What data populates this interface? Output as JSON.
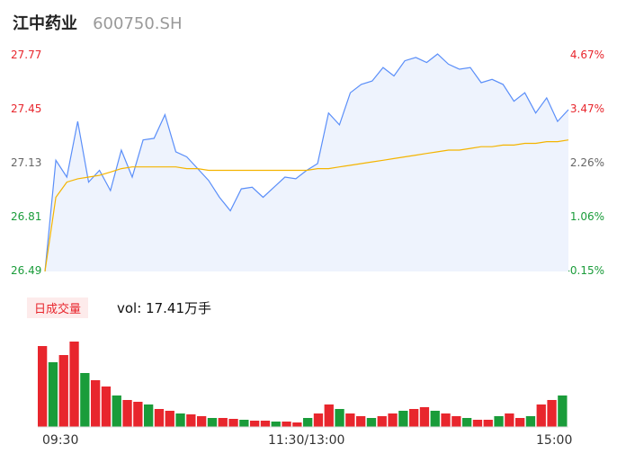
{
  "header": {
    "name": "江中药业",
    "code": "600750.SH"
  },
  "price_axis": {
    "left_labels": [
      "27.77",
      "27.45",
      "27.13",
      "26.81",
      "26.49"
    ],
    "right_labels": [
      "4.67%",
      "3.47%",
      "2.26%",
      "1.06%",
      "-0.15%"
    ]
  },
  "volume_panel": {
    "badge": "日成交量",
    "vol_text": "vol: 17.41万手"
  },
  "time_axis": {
    "labels": [
      "09:30",
      "11:30/13:00",
      "15:00"
    ]
  },
  "colors": {
    "price_line": "#5b8ff9",
    "avg_line": "#f4b400",
    "up": "#e8262d",
    "down": "#1a9c3a",
    "area": "#eef3fd"
  },
  "chart_data": [
    {
      "type": "line",
      "title": "",
      "x": [
        0,
        5,
        10,
        15,
        20,
        25,
        30,
        35,
        40,
        45,
        50,
        55,
        60,
        65,
        70,
        75,
        80,
        85,
        90,
        95,
        100,
        105,
        110,
        115,
        120,
        125,
        130,
        135,
        140,
        145,
        150,
        155,
        160,
        165,
        170,
        175,
        180,
        185,
        190,
        195,
        200,
        205,
        210,
        215,
        220,
        225,
        230,
        235,
        240
      ],
      "series": [
        {
          "values": [
            26.49,
            27.15,
            27.05,
            27.38,
            27.02,
            27.09,
            26.97,
            27.21,
            27.05,
            27.27,
            27.28,
            27.42,
            27.2,
            27.17,
            27.1,
            27.03,
            26.93,
            26.85,
            26.98,
            26.99,
            26.93,
            26.99,
            27.05,
            27.04,
            27.09,
            27.13,
            27.43,
            27.36,
            27.55,
            27.6,
            27.62,
            27.7,
            27.65,
            27.74,
            27.76,
            27.73,
            27.78,
            27.72,
            27.69,
            27.7,
            27.61,
            27.63,
            27.6,
            27.5,
            27.55,
            27.43,
            27.52,
            27.38,
            27.45
          ]
        },
        {
          "values": [
            26.49,
            26.93,
            27.02,
            27.04,
            27.05,
            27.06,
            27.08,
            27.1,
            27.11,
            27.11,
            27.11,
            27.11,
            27.11,
            27.1,
            27.1,
            27.09,
            27.09,
            27.09,
            27.09,
            27.09,
            27.09,
            27.09,
            27.09,
            27.09,
            27.09,
            27.1,
            27.1,
            27.11,
            27.12,
            27.13,
            27.14,
            27.15,
            27.16,
            27.17,
            27.18,
            27.19,
            27.2,
            27.21,
            27.21,
            27.22,
            27.23,
            27.23,
            27.24,
            27.24,
            27.25,
            27.25,
            27.26,
            27.26,
            27.27
          ]
        }
      ],
      "ylim": [
        26.49,
        27.77
      ],
      "xlabel": "",
      "ylabel": "",
      "grid": false
    },
    {
      "type": "bar",
      "title": "",
      "series": [
        {
          "values": [
            90,
            72,
            80,
            95,
            60,
            52,
            45,
            35,
            30,
            28,
            25,
            20,
            18,
            15,
            14,
            12,
            10,
            10,
            9,
            8,
            7,
            7,
            6,
            6,
            5,
            10,
            15,
            25,
            20,
            15,
            12,
            10,
            12,
            15,
            18,
            20,
            22,
            18,
            15,
            12,
            10,
            8,
            8,
            12,
            15,
            10,
            12,
            25,
            30,
            35
          ]
        }
      ],
      "ylabel": "",
      "xlabel": ""
    }
  ]
}
